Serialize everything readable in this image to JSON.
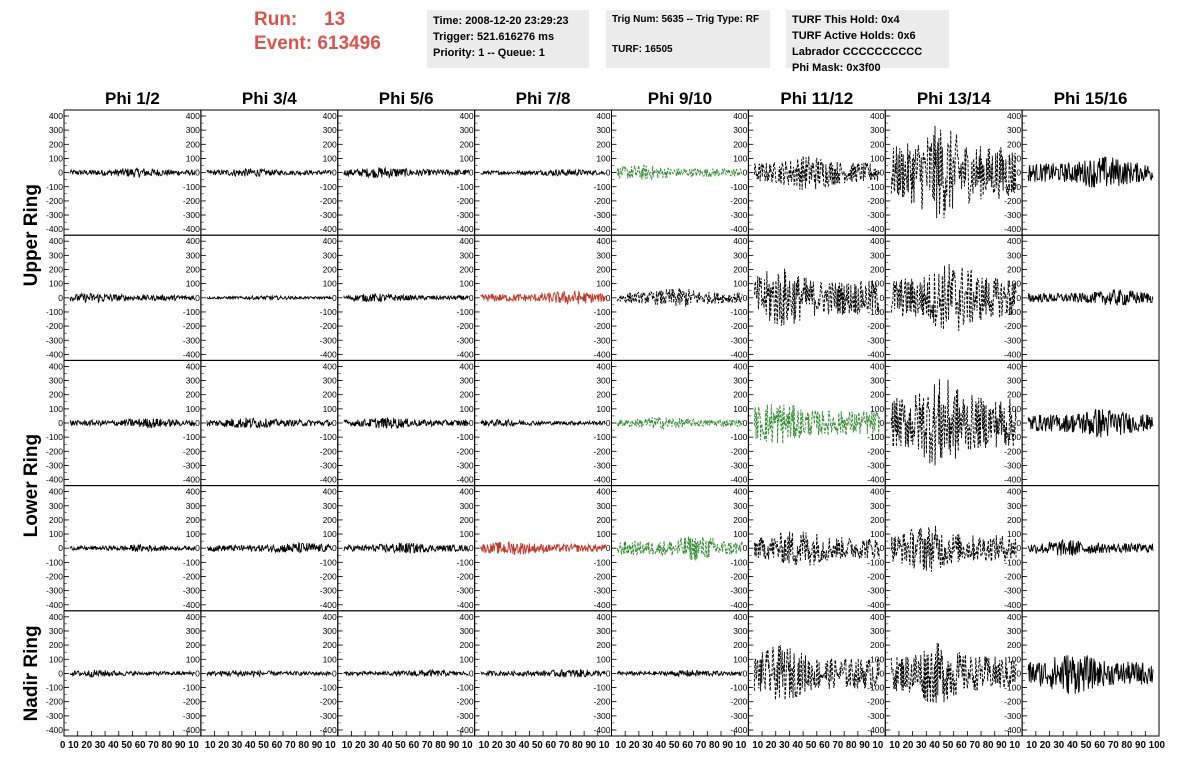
{
  "header": {
    "run_label": "Run:",
    "run_value": "13",
    "event_label": "Event:",
    "event_value": "613496",
    "time": "Time: 2008-12-20 23:29:23",
    "trigger": "Trigger: 521.616276 ms",
    "priority": "Priority: 1 -- Queue: 1",
    "trig_num": "Trig Num: 5635 -- Trig Type: RF",
    "turf": "TURF: 16505",
    "turf_this_hold": "TURF This Hold: 0x4",
    "turf_active_holds": "TURF Active Holds: 0x6",
    "labrador": "Labrador CCCCCCCCCC",
    "phi_mask": "Phi Mask: 0x3f00"
  },
  "colors": {
    "run_text": "#d9534f",
    "info_box": "#ececec",
    "normal": "#000000",
    "triggered": "#2e8b2e",
    "masked": "#c0392b"
  },
  "chart_data": {
    "type": "line",
    "title": "",
    "columns": [
      "Phi 1/2",
      "Phi 3/4",
      "Phi 5/6",
      "Phi 7/8",
      "Phi 9/10",
      "Phi 11/12",
      "Phi 13/14",
      "Phi 15/16"
    ],
    "row_labels": [
      "Upper Ring",
      "Lower Ring",
      "Nadir Ring"
    ],
    "ylim": [
      -400,
      400
    ],
    "y_ticks": [
      400,
      300,
      200,
      100,
      0,
      -100,
      -200,
      -300,
      -400
    ],
    "xlim": [
      0,
      100
    ],
    "x_ticks": [
      0,
      10,
      20,
      30,
      40,
      50,
      60,
      70,
      80,
      90,
      100
    ],
    "x_tick_labels": [
      "0 10 20 30 40 50 60 70 80 90 10",
      "10 20 30 40 50 60 70 80 90 10",
      "10 20 30 40 50 60 70 80 90 10",
      "10 20 30 40 50 60 70 80 90 10",
      "10 20 30 40 50 60 70 80 90 10",
      "10 20 30 40 50 60 70 80 90 10",
      "10 20 30 40 50 60 70 80 90 10",
      "10 20 30 40 50 60 70 80 90 100"
    ],
    "grid": false,
    "panels": [
      [
        {
          "amp": 35,
          "color": "black",
          "dash": false
        },
        {
          "amp": 30,
          "color": "black",
          "dash": false
        },
        {
          "amp": 40,
          "color": "black",
          "dash": false
        },
        {
          "amp": 25,
          "color": "black",
          "dash": false
        },
        {
          "amp": 55,
          "color": "green",
          "dash": true
        },
        {
          "amp": 130,
          "color": "black",
          "dash": true
        },
        {
          "amp": 340,
          "color": "black",
          "dash": true
        },
        {
          "amp": 120,
          "color": "black",
          "dash": false
        }
      ],
      [
        {
          "amp": 35,
          "color": "black",
          "dash": false
        },
        {
          "amp": 15,
          "color": "black",
          "dash": false
        },
        {
          "amp": 30,
          "color": "black",
          "dash": false
        },
        {
          "amp": 50,
          "color": "red",
          "dash": false
        },
        {
          "amp": 70,
          "color": "black",
          "dash": true
        },
        {
          "amp": 220,
          "color": "black",
          "dash": true
        },
        {
          "amp": 260,
          "color": "black",
          "dash": true
        },
        {
          "amp": 60,
          "color": "black",
          "dash": false
        }
      ],
      [
        {
          "amp": 35,
          "color": "black",
          "dash": false
        },
        {
          "amp": 40,
          "color": "black",
          "dash": false
        },
        {
          "amp": 40,
          "color": "black",
          "dash": false
        },
        {
          "amp": 25,
          "color": "black",
          "dash": false
        },
        {
          "amp": 45,
          "color": "green",
          "dash": true
        },
        {
          "amp": 160,
          "color": "green",
          "dash": true
        },
        {
          "amp": 320,
          "color": "black",
          "dash": true
        },
        {
          "amp": 110,
          "color": "black",
          "dash": false
        }
      ],
      [
        {
          "amp": 25,
          "color": "black",
          "dash": false
        },
        {
          "amp": 40,
          "color": "black",
          "dash": false
        },
        {
          "amp": 40,
          "color": "black",
          "dash": false
        },
        {
          "amp": 50,
          "color": "red",
          "dash": false
        },
        {
          "amp": 90,
          "color": "green",
          "dash": true
        },
        {
          "amp": 140,
          "color": "black",
          "dash": true
        },
        {
          "amp": 170,
          "color": "black",
          "dash": true
        },
        {
          "amp": 60,
          "color": "black",
          "dash": false
        }
      ],
      [
        {
          "amp": 25,
          "color": "black",
          "dash": false
        },
        {
          "amp": 25,
          "color": "black",
          "dash": false
        },
        {
          "amp": 25,
          "color": "black",
          "dash": false
        },
        {
          "amp": 30,
          "color": "black",
          "dash": false
        },
        {
          "amp": 25,
          "color": "black",
          "dash": false
        },
        {
          "amp": 200,
          "color": "black",
          "dash": true
        },
        {
          "amp": 220,
          "color": "black",
          "dash": true
        },
        {
          "amp": 150,
          "color": "black",
          "dash": false
        }
      ]
    ]
  }
}
